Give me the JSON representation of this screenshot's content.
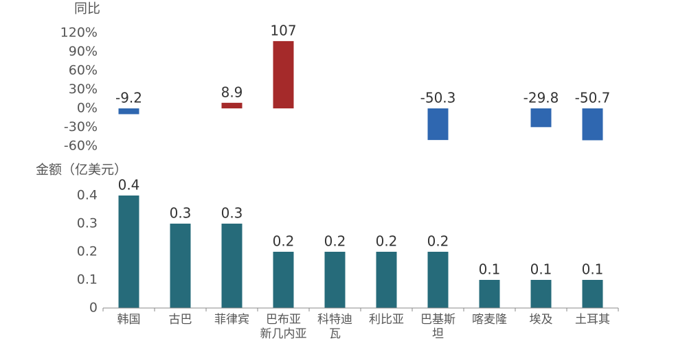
{
  "chart_data": [
    {
      "type": "bar",
      "title": "同比",
      "values": [
        -9.2,
        null,
        8.9,
        107,
        null,
        null,
        -50.3,
        null,
        -29.8,
        -50.7
      ],
      "color_positive": "#a52a2a",
      "color_negative": "#2f67b0",
      "ylim": [
        -60,
        120
      ],
      "yticks": [
        {
          "value": 120,
          "label": "120%"
        },
        {
          "value": 90,
          "label": "90%"
        },
        {
          "value": 60,
          "label": "60%"
        },
        {
          "value": 30,
          "label": "30%"
        },
        {
          "value": 0,
          "label": "0%"
        },
        {
          "value": -30,
          "label": "-30%"
        },
        {
          "value": -60,
          "label": "-60%"
        }
      ]
    },
    {
      "type": "bar",
      "title": "金额（亿美元）",
      "categories": [
        "韩国",
        "古巴",
        "菲律宾",
        "巴布亚新几内亚",
        "科特迪瓦",
        "利比亚",
        "巴基斯坦",
        "喀麦隆",
        "埃及",
        "土耳其"
      ],
      "values": [
        0.4,
        0.3,
        0.3,
        0.2,
        0.2,
        0.2,
        0.2,
        0.1,
        0.1,
        0.1
      ],
      "color": "#266b7a",
      "ylim": [
        0,
        0.4
      ],
      "yticks": [
        0,
        0.1,
        0.2,
        0.3,
        0.4
      ]
    }
  ]
}
